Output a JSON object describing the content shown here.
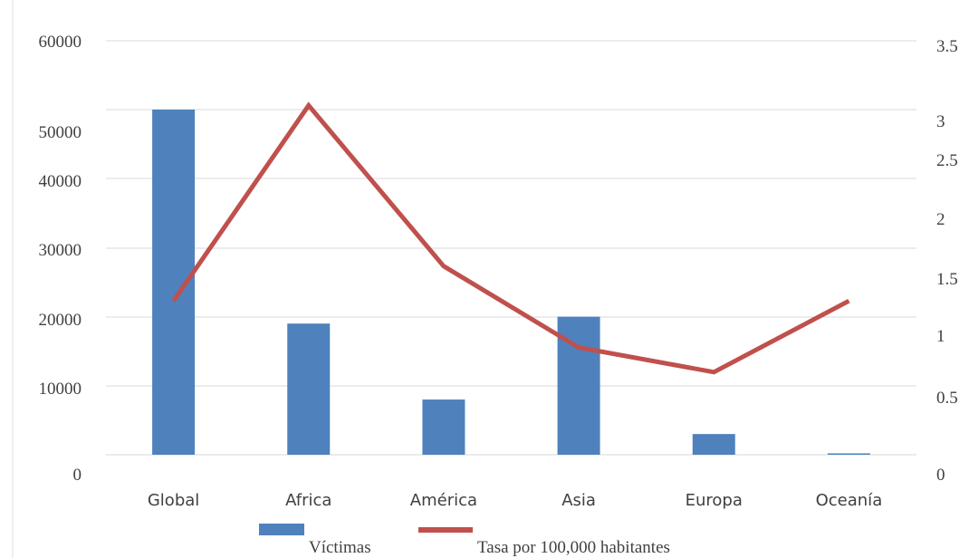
{
  "chart_data": {
    "type": "bar",
    "categories": [
      "Global",
      "Africa",
      "América",
      "Asia",
      "Europa",
      "Oceanía"
    ],
    "series": [
      {
        "name": "Víctimas",
        "type": "bar",
        "axis": "left",
        "color": "#4F81BD",
        "values": [
          50000,
          19000,
          8000,
          20000,
          3000,
          200
        ]
      },
      {
        "name": "Tasa por 100,000 habitantes",
        "type": "line",
        "axis": "right",
        "color": "#C0504D",
        "values": [
          1.3,
          3.1,
          1.6,
          0.9,
          0.7,
          1.3
        ]
      }
    ],
    "y_left": {
      "ticks": [
        {
          "label": "60000",
          "value": 60000
        },
        {
          "label": "50000",
          "value": 50000
        },
        {
          "label": "40000",
          "value": 40000
        },
        {
          "label": "30000",
          "value": 30000
        },
        {
          "label": "20000",
          "value": 20000
        },
        {
          "label": "10000",
          "value": 10000
        },
        {
          "label": "0",
          "value": 0
        }
      ]
    },
    "y_right": {
      "ticks": [
        {
          "label": "3.5",
          "value": 3.5
        },
        {
          "label": "3",
          "value": 3
        },
        {
          "label": "2.5",
          "value": 2.5
        },
        {
          "label": "2",
          "value": 2
        },
        {
          "label": "1.5",
          "value": 1.5
        },
        {
          "label": "1",
          "value": 1
        },
        {
          "label": "0.5",
          "value": 0.5
        },
        {
          "label": "0",
          "value": 0
        }
      ]
    },
    "grid": true,
    "legend_position": "bottom"
  }
}
